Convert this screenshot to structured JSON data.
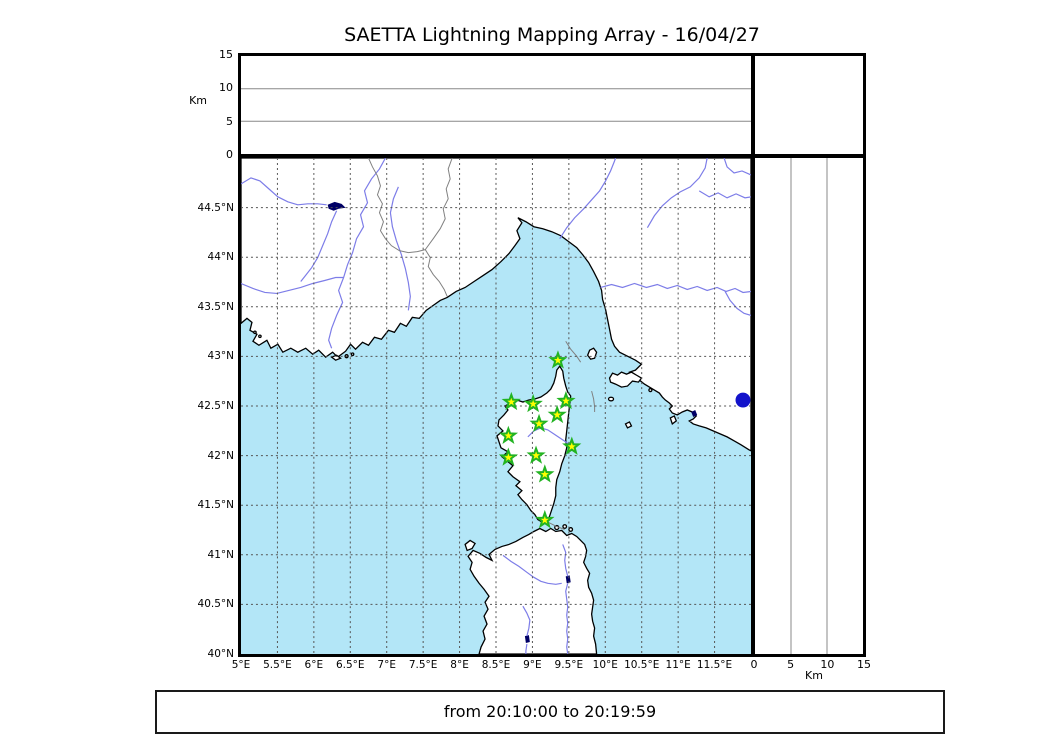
{
  "title": "SAETTA Lightning Mapping Array - 16/04/27",
  "footer": {
    "time_range": "from 20:10:00 to 20:19:59"
  },
  "altitude_axis": {
    "label": "Km",
    "top_panel_ticks": [
      15,
      10,
      5,
      0
    ],
    "right_panel_ticks": [
      0,
      5,
      10,
      15
    ],
    "max_km": 15
  },
  "map_axes": {
    "lon_tick_values": [
      5,
      5.5,
      6,
      6.5,
      7,
      7.5,
      8,
      8.5,
      9,
      9.5,
      10,
      10.5,
      11,
      11.5
    ],
    "lon_tick_labels": [
      "5°E",
      "5.5°E",
      "6°E",
      "6.5°E",
      "7°E",
      "7.5°E",
      "8°E",
      "8.5°E",
      "9°E",
      "9.5°E",
      "10°E",
      "10.5°E",
      "11°E",
      "11.5°E"
    ],
    "lat_tick_values": [
      44.5,
      44,
      43.5,
      43,
      42.5,
      42,
      41.5,
      41,
      40.5,
      40
    ],
    "lat_tick_labels": [
      "44.5°N",
      "44°N",
      "43.5°N",
      "43°N",
      "42.5°N",
      "42°N",
      "41.5°N",
      "41°N",
      "40.5°N",
      "40°N"
    ],
    "lon_range": [
      5,
      12
    ],
    "lat_range": [
      40,
      45
    ],
    "grid_step_deg": 0.5
  },
  "colors": {
    "sea": "#b3e6f7",
    "land": "#ffffff",
    "coast": "#000000",
    "river": "#7d7de8",
    "lake": "#000066",
    "border_line": "#808080",
    "grid": "#555555",
    "station_fill": "#ffff00",
    "station_edge": "#22b322",
    "event_dot": "#1313cb"
  },
  "chart_data": {
    "type": "map",
    "title": "SAETTA Lightning Mapping Array - 16/04/27",
    "time_window": "from 20:10:00 to 20:19:59",
    "extent": {
      "lon_min": 5,
      "lon_max": 12,
      "lat_min": 40,
      "lat_max": 45
    },
    "altitude_panels_km": {
      "min": 0,
      "max": 15,
      "ticks": [
        0,
        5,
        10,
        15
      ],
      "data_points": "none"
    },
    "stations_lonlat": [
      [
        9.35,
        42.96
      ],
      [
        8.71,
        42.54
      ],
      [
        9.01,
        42.52
      ],
      [
        9.46,
        42.55
      ],
      [
        9.34,
        42.41
      ],
      [
        9.09,
        42.32
      ],
      [
        8.67,
        42.2
      ],
      [
        9.54,
        42.09
      ],
      [
        9.05,
        42.0
      ],
      [
        8.67,
        41.98
      ],
      [
        9.17,
        41.81
      ],
      [
        9.17,
        41.35
      ]
    ],
    "event_marker_lonlat": [
      [
        11.89,
        42.56
      ]
    ]
  }
}
